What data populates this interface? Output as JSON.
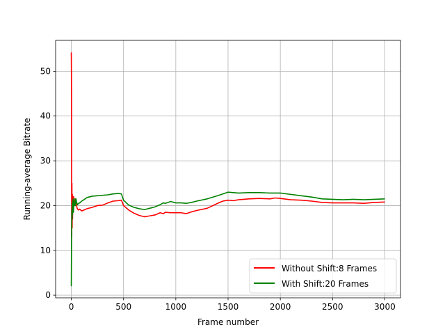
{
  "chart_data": {
    "type": "line",
    "title": "",
    "xlabel": "Frame number",
    "ylabel": "Running-average Bitrate",
    "xlim": [
      -150,
      3150
    ],
    "ylim": [
      -0.6,
      56.9
    ],
    "xticks": [
      0,
      500,
      1000,
      1500,
      2000,
      2500,
      3000
    ],
    "yticks": [
      0,
      10,
      20,
      30,
      40,
      50
    ],
    "grid": true,
    "legend_position": "lower-right",
    "series": [
      {
        "name": "Without Shift:8 Frames",
        "color": "#ff0000",
        "x": [
          0,
          2,
          4,
          6,
          8,
          10,
          12,
          14,
          16,
          18,
          20,
          22,
          25,
          30,
          35,
          40,
          45,
          50,
          55,
          60,
          70,
          80,
          90,
          100,
          120,
          150,
          200,
          250,
          300,
          350,
          400,
          450,
          480,
          500,
          550,
          600,
          650,
          700,
          750,
          800,
          850,
          880,
          900,
          950,
          1000,
          1050,
          1100,
          1150,
          1200,
          1300,
          1400,
          1450,
          1500,
          1550,
          1600,
          1700,
          1800,
          1900,
          1950,
          2000,
          2100,
          2200,
          2300,
          2400,
          2500,
          2600,
          2700,
          2800,
          2900,
          3000
        ],
        "values": [
          54.2,
          45.0,
          13.0,
          25.0,
          15.0,
          22.5,
          17.0,
          21.5,
          20.5,
          22.0,
          19.0,
          22.0,
          20.0,
          21.0,
          20.0,
          21.5,
          20.5,
          20.0,
          19.5,
          19.2,
          19.0,
          19.2,
          19.0,
          18.8,
          19.0,
          19.3,
          19.6,
          20.0,
          20.1,
          20.6,
          21.0,
          21.1,
          21.2,
          20.0,
          19.0,
          18.3,
          17.8,
          17.5,
          17.7,
          17.9,
          18.4,
          18.2,
          18.5,
          18.4,
          18.4,
          18.4,
          18.2,
          18.6,
          18.9,
          19.4,
          20.5,
          21.0,
          21.2,
          21.1,
          21.3,
          21.5,
          21.6,
          21.5,
          21.7,
          21.6,
          21.3,
          21.2,
          21.0,
          20.7,
          20.6,
          20.6,
          20.6,
          20.5,
          20.7,
          20.8
        ]
      },
      {
        "name": "With Shift:20 Frames",
        "color": "#008000",
        "x": [
          0,
          2,
          4,
          6,
          8,
          10,
          12,
          14,
          16,
          18,
          20,
          25,
          30,
          35,
          40,
          45,
          50,
          55,
          60,
          70,
          80,
          100,
          120,
          150,
          200,
          250,
          300,
          350,
          400,
          450,
          480,
          500,
          550,
          600,
          650,
          700,
          750,
          800,
          850,
          880,
          900,
          950,
          1000,
          1050,
          1100,
          1150,
          1200,
          1300,
          1400,
          1450,
          1500,
          1550,
          1600,
          1700,
          1800,
          1900,
          1950,
          2000,
          2100,
          2200,
          2300,
          2400,
          2500,
          2600,
          2700,
          2800,
          2900,
          3000
        ],
        "values": [
          2.0,
          12.0,
          15.5,
          19.0,
          17.0,
          20.5,
          18.0,
          21.0,
          19.5,
          21.5,
          18.5,
          20.5,
          20.0,
          21.5,
          20.0,
          21.5,
          20.8,
          20.5,
          20.2,
          20.5,
          20.6,
          21.0,
          21.3,
          21.8,
          22.1,
          22.2,
          22.3,
          22.4,
          22.6,
          22.7,
          22.6,
          21.2,
          20.1,
          19.6,
          19.3,
          19.1,
          19.4,
          19.7,
          20.2,
          20.6,
          20.5,
          20.9,
          20.6,
          20.6,
          20.5,
          20.7,
          21.0,
          21.5,
          22.2,
          22.6,
          23.0,
          22.9,
          22.8,
          22.9,
          22.9,
          22.8,
          22.8,
          22.8,
          22.5,
          22.2,
          21.9,
          21.5,
          21.4,
          21.3,
          21.4,
          21.3,
          21.4,
          21.5
        ]
      }
    ]
  }
}
